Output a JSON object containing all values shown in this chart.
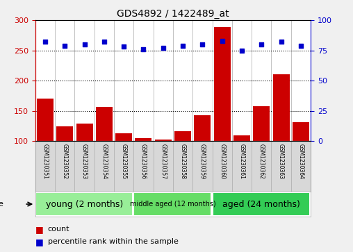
{
  "title": "GDS4892 / 1422489_at",
  "samples": [
    "GSM1230351",
    "GSM1230352",
    "GSM1230353",
    "GSM1230354",
    "GSM1230355",
    "GSM1230356",
    "GSM1230357",
    "GSM1230358",
    "GSM1230359",
    "GSM1230360",
    "GSM1230361",
    "GSM1230362",
    "GSM1230363",
    "GSM1230364"
  ],
  "counts": [
    170,
    124,
    129,
    157,
    113,
    105,
    103,
    116,
    143,
    289,
    110,
    158,
    210,
    131
  ],
  "percentile_ranks": [
    82,
    79,
    80,
    82,
    78,
    76,
    77,
    79,
    80,
    83,
    75,
    80,
    82,
    79
  ],
  "groups": [
    {
      "label": "young (2 months)",
      "start": 0,
      "end": 5,
      "color": "#98EE98",
      "fontsize": 9
    },
    {
      "label": "middle aged (12 months)",
      "start": 5,
      "end": 9,
      "color": "#66DD66",
      "fontsize": 7
    },
    {
      "label": "aged (24 months)",
      "start": 9,
      "end": 14,
      "color": "#33CC55",
      "fontsize": 9
    }
  ],
  "bar_color": "#CC0000",
  "dot_color": "#0000CC",
  "left_axis_color": "#CC0000",
  "right_axis_color": "#0000CC",
  "ylim_left": [
    100,
    300
  ],
  "ylim_right": [
    0,
    100
  ],
  "yticks_left": [
    100,
    150,
    200,
    250,
    300
  ],
  "yticks_right": [
    0,
    25,
    50,
    75,
    100
  ],
  "hlines": [
    150,
    200,
    250
  ],
  "sample_box_color": "#d8d8d8",
  "plot_bg": "#ffffff"
}
